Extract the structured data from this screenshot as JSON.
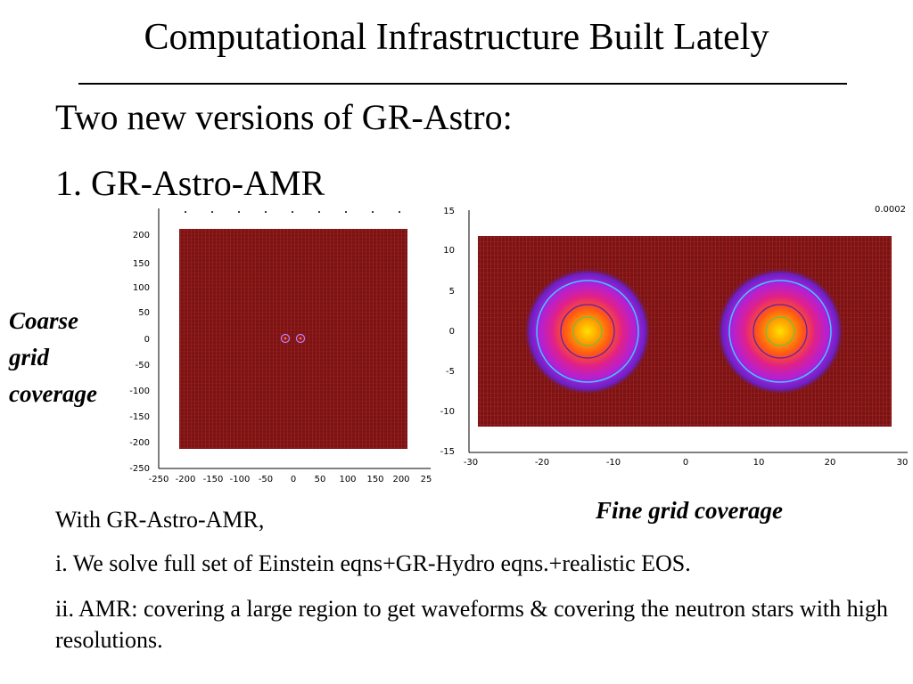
{
  "slide": {
    "title": "Computational Infrastructure Built Lately",
    "heading": "Two new versions of GR-Astro:",
    "subheading": "1. GR-Astro-AMR",
    "left_caption": [
      "Coarse",
      "grid",
      "coverage"
    ],
    "right_caption": "Fine grid coverage",
    "intro": "With GR-Astro-AMR,",
    "point_1": "i. We solve full set of Einstein eqns+GR-Hydro eqns.+realistic EOS.",
    "point_2": "ii.  AMR: covering a large region to get waveforms & covering the neutron stars with high resolutions."
  },
  "coarse_plot": {
    "x_ticks": [
      "-250",
      "-200",
      "-150",
      "-100",
      "-50",
      "0",
      "50",
      "100",
      "150",
      "200",
      "25"
    ],
    "y_ticks": [
      "200",
      "150",
      "100",
      "50",
      "0",
      "-50",
      "-100",
      "-150",
      "-200",
      "-250"
    ],
    "grid_color": "#8b1a1a"
  },
  "fine_plot": {
    "x_ticks": [
      "-30",
      "-20",
      "-10",
      "0",
      "10",
      "20",
      "30"
    ],
    "y_ticks": [
      "15",
      "10",
      "5",
      "0",
      "-5",
      "-10",
      "-15"
    ],
    "corner_label": "0.0002",
    "grid_color": "#8b1a1a"
  },
  "colors": {
    "field": "#7a1414",
    "grid_line": "#c83232"
  }
}
